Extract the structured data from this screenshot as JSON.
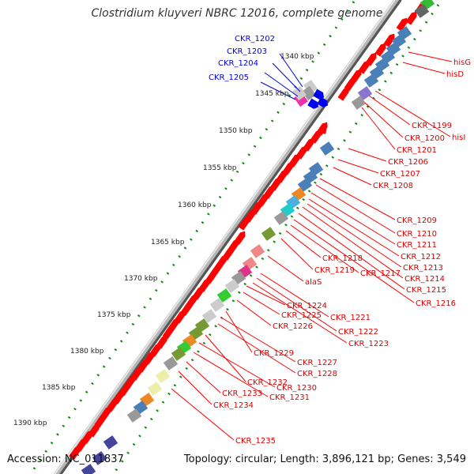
{
  "title": "Clostridium kluyveri NBRC 12016, complete genome",
  "footer": {
    "accession": "Accession: NC_011837",
    "summary": "Topology: circular; Length: 3,896,121 bp; Genes: 3,549"
  },
  "scale_labels": [
    "1340 kbp",
    "1345 kbp",
    "1350 kbp",
    "1355 kbp",
    "1360 kbp",
    "1365 kbp",
    "1370 kbp",
    "1375 kbp",
    "1380 kbp",
    "1385 kbp",
    "1390 kbp"
  ],
  "colors": {
    "forward_strand": "#ff0000",
    "label_red": "#dd0000",
    "label_blue": "#0000dd",
    "backbone": "#999999",
    "gc_dots": "#118811",
    "blue_block": "#4a7fb8"
  },
  "gene_labels_blue": [
    "CKR_1202",
    "CKR_1203",
    "CKR_1204",
    "CKR_1205"
  ],
  "gene_labels_red": [
    "hisG",
    "hisD",
    "CKR_1199",
    "hisI",
    "CKR_1200",
    "CKR_1201",
    "CKR_1206",
    "CKR_1207",
    "CKR_1208",
    "CKR_1209",
    "CKR_1210",
    "CKR_1211",
    "CKR_1212",
    "CKR_1213",
    "CKR_1214",
    "CKR_1215",
    "CKR_1216",
    "CKR_1217",
    "CKR_1218",
    "CKR_1219",
    "alaS",
    "CKR_1221",
    "CKR_1222",
    "CKR_1223",
    "CKR_1224",
    "CKR_1225",
    "CKR_1226",
    "CKR_1227",
    "CKR_1228",
    "CKR_1229",
    "CKR_1230",
    "CKR_1231",
    "CKR_1232",
    "CKR_1233",
    "CKR_1234",
    "CKR_1235"
  ]
}
